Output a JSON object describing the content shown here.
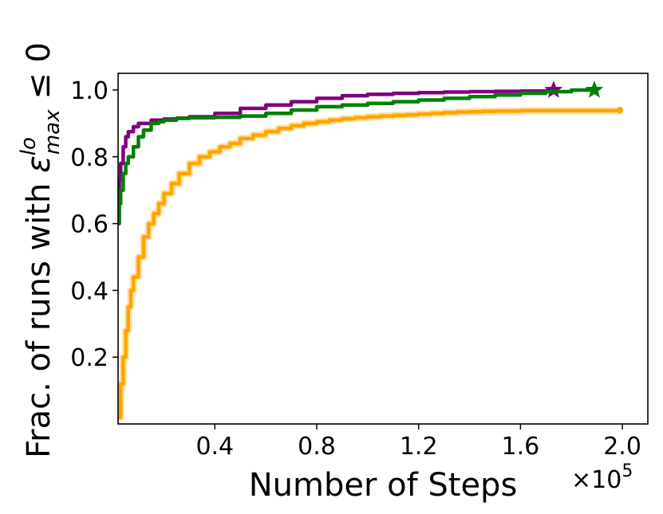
{
  "chart_data": {
    "type": "line",
    "xlabel": "Number of Steps",
    "ylabel_prefix": "Frac. of runs with ",
    "ylabel_symbol": "ε",
    "ylabel_sub": "max",
    "ylabel_sup": "lo",
    "ylabel_suffix": " ≤ 0",
    "x_multiplier_base": "×10",
    "x_multiplier_exp": "5",
    "xlim": [
      0.02,
      2.1
    ],
    "ylim": [
      0.0,
      1.05
    ],
    "grid": false,
    "x_ticks": [
      {
        "value": 0.4,
        "label": "0.4"
      },
      {
        "value": 0.8,
        "label": "0.8"
      },
      {
        "value": 1.2,
        "label": "1.2"
      },
      {
        "value": 1.6,
        "label": "1.6"
      },
      {
        "value": 2.0,
        "label": "2.0"
      }
    ],
    "y_ticks": [
      {
        "value": 0.2,
        "label": "0.2"
      },
      {
        "value": 0.4,
        "label": "0.4"
      },
      {
        "value": 0.6,
        "label": "0.6"
      },
      {
        "value": 0.8,
        "label": "0.8"
      },
      {
        "value": 1.0,
        "label": "1.0"
      }
    ],
    "series": [
      {
        "color": "#ffa500",
        "band": true,
        "end_marker": "circle",
        "x": [
          0.02,
          0.03,
          0.04,
          0.05,
          0.06,
          0.07,
          0.08,
          0.1,
          0.12,
          0.14,
          0.16,
          0.18,
          0.2,
          0.23,
          0.26,
          0.3,
          0.34,
          0.38,
          0.42,
          0.46,
          0.5,
          0.55,
          0.6,
          0.65,
          0.7,
          0.75,
          0.8,
          0.85,
          0.9,
          0.95,
          1.0,
          1.05,
          1.1,
          1.15,
          1.2,
          1.25,
          1.3,
          1.35,
          1.4,
          1.45,
          1.5,
          1.55,
          1.6,
          1.65,
          1.7,
          1.8,
          1.9,
          1.99
        ],
        "y": [
          0.02,
          0.12,
          0.2,
          0.28,
          0.35,
          0.4,
          0.44,
          0.5,
          0.56,
          0.6,
          0.63,
          0.66,
          0.69,
          0.72,
          0.75,
          0.78,
          0.8,
          0.815,
          0.83,
          0.84,
          0.855,
          0.865,
          0.875,
          0.885,
          0.893,
          0.9,
          0.905,
          0.91,
          0.914,
          0.917,
          0.92,
          0.922,
          0.924,
          0.926,
          0.928,
          0.93,
          0.932,
          0.934,
          0.935,
          0.936,
          0.937,
          0.937,
          0.938,
          0.938,
          0.938,
          0.938,
          0.938,
          0.94
        ]
      },
      {
        "color": "#800080",
        "band": false,
        "end_marker": "star",
        "x": [
          0.02,
          0.025,
          0.03,
          0.04,
          0.05,
          0.06,
          0.08,
          0.1,
          0.15,
          0.2,
          0.25,
          0.3,
          0.4,
          0.5,
          0.6,
          0.7,
          0.8,
          0.9,
          1.0,
          1.1,
          1.2,
          1.3,
          1.4,
          1.5,
          1.6,
          1.7,
          1.73
        ],
        "y": [
          0.66,
          0.73,
          0.78,
          0.83,
          0.86,
          0.875,
          0.89,
          0.9,
          0.91,
          0.913,
          0.916,
          0.92,
          0.93,
          0.945,
          0.955,
          0.965,
          0.975,
          0.983,
          0.987,
          0.99,
          0.992,
          0.994,
          0.995,
          0.996,
          0.997,
          0.998,
          1.0
        ]
      },
      {
        "color": "#008000",
        "band": false,
        "end_marker": "star",
        "x": [
          0.02,
          0.025,
          0.03,
          0.04,
          0.05,
          0.06,
          0.08,
          0.1,
          0.12,
          0.15,
          0.18,
          0.2,
          0.25,
          0.3,
          0.4,
          0.5,
          0.6,
          0.7,
          0.8,
          0.9,
          1.0,
          1.1,
          1.2,
          1.3,
          1.4,
          1.5,
          1.6,
          1.7,
          1.8,
          1.89
        ],
        "y": [
          0.6,
          0.66,
          0.7,
          0.75,
          0.78,
          0.8,
          0.83,
          0.86,
          0.88,
          0.9,
          0.905,
          0.91,
          0.915,
          0.917,
          0.918,
          0.922,
          0.93,
          0.94,
          0.95,
          0.955,
          0.96,
          0.965,
          0.97,
          0.975,
          0.98,
          0.985,
          0.99,
          0.995,
          1.0,
          1.0
        ]
      }
    ]
  }
}
